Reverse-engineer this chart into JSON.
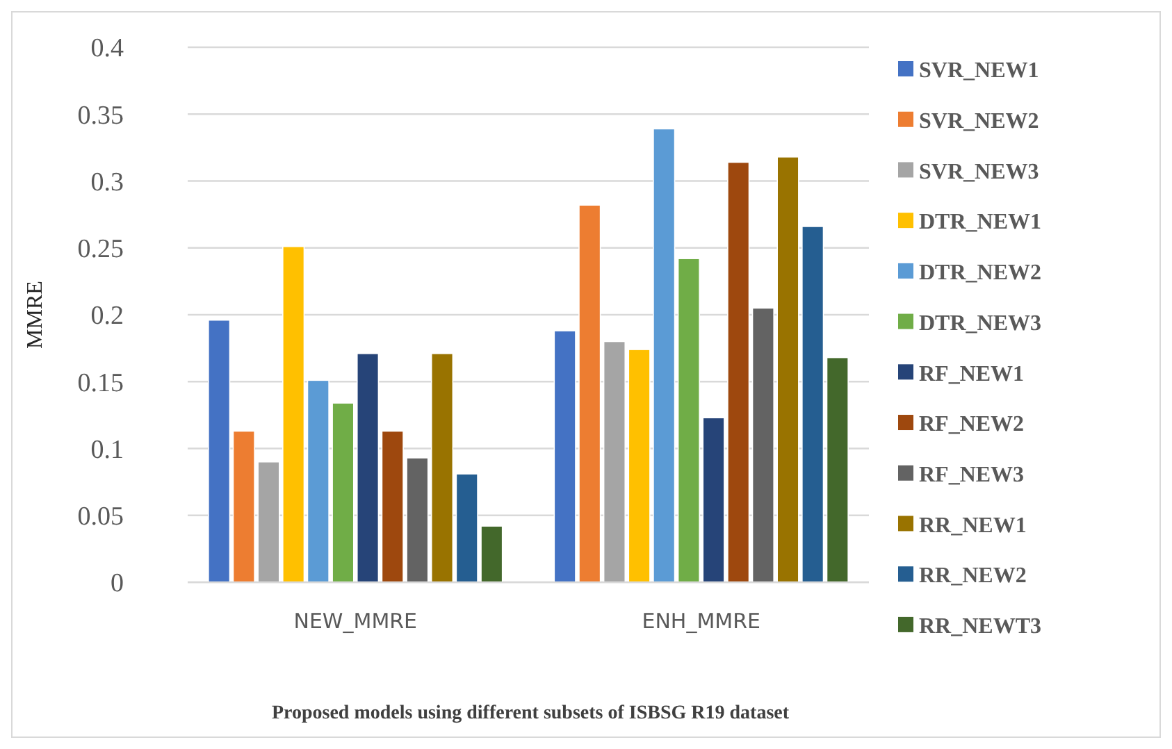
{
  "chart_data": {
    "type": "bar",
    "title": "Proposed models using different subsets of ISBSG R19 dataset",
    "ylabel": "MMRE",
    "categories": [
      "NEW_MMRE",
      "ENH_MMRE"
    ],
    "ylim": [
      0,
      0.4
    ],
    "yticks": [
      0,
      0.05,
      0.1,
      0.15,
      0.2,
      0.25,
      0.3,
      0.35,
      0.4
    ],
    "grid": "y",
    "legend": "right",
    "series": [
      {
        "name": "SVR_NEW1",
        "color": "#4472c4",
        "values": [
          0.196,
          0.188
        ]
      },
      {
        "name": "SVR_NEW2",
        "color": "#ed7d31",
        "values": [
          0.113,
          0.282
        ]
      },
      {
        "name": "SVR_NEW3",
        "color": "#a5a5a5",
        "values": [
          0.09,
          0.18
        ]
      },
      {
        "name": "DTR_NEW1",
        "color": "#ffc000",
        "values": [
          0.251,
          0.174
        ]
      },
      {
        "name": "DTR_NEW2",
        "color": "#5b9bd5",
        "values": [
          0.151,
          0.339
        ]
      },
      {
        "name": "DTR_NEW3",
        "color": "#70ad47",
        "values": [
          0.134,
          0.242
        ]
      },
      {
        "name": "RF_NEW1",
        "color": "#264478",
        "values": [
          0.171,
          0.123
        ]
      },
      {
        "name": "RF_NEW2",
        "color": "#9e480e",
        "values": [
          0.113,
          0.314
        ]
      },
      {
        "name": "RF_NEW3",
        "color": "#636363",
        "values": [
          0.093,
          0.205
        ]
      },
      {
        "name": "RR_NEW1",
        "color": "#997300",
        "values": [
          0.171,
          0.318
        ]
      },
      {
        "name": "RR_NEW2",
        "color": "#255e91",
        "values": [
          0.081,
          0.266
        ]
      },
      {
        "name": "RR_NEWT3",
        "color": "#43682b",
        "values": [
          0.042,
          0.168
        ]
      }
    ]
  }
}
